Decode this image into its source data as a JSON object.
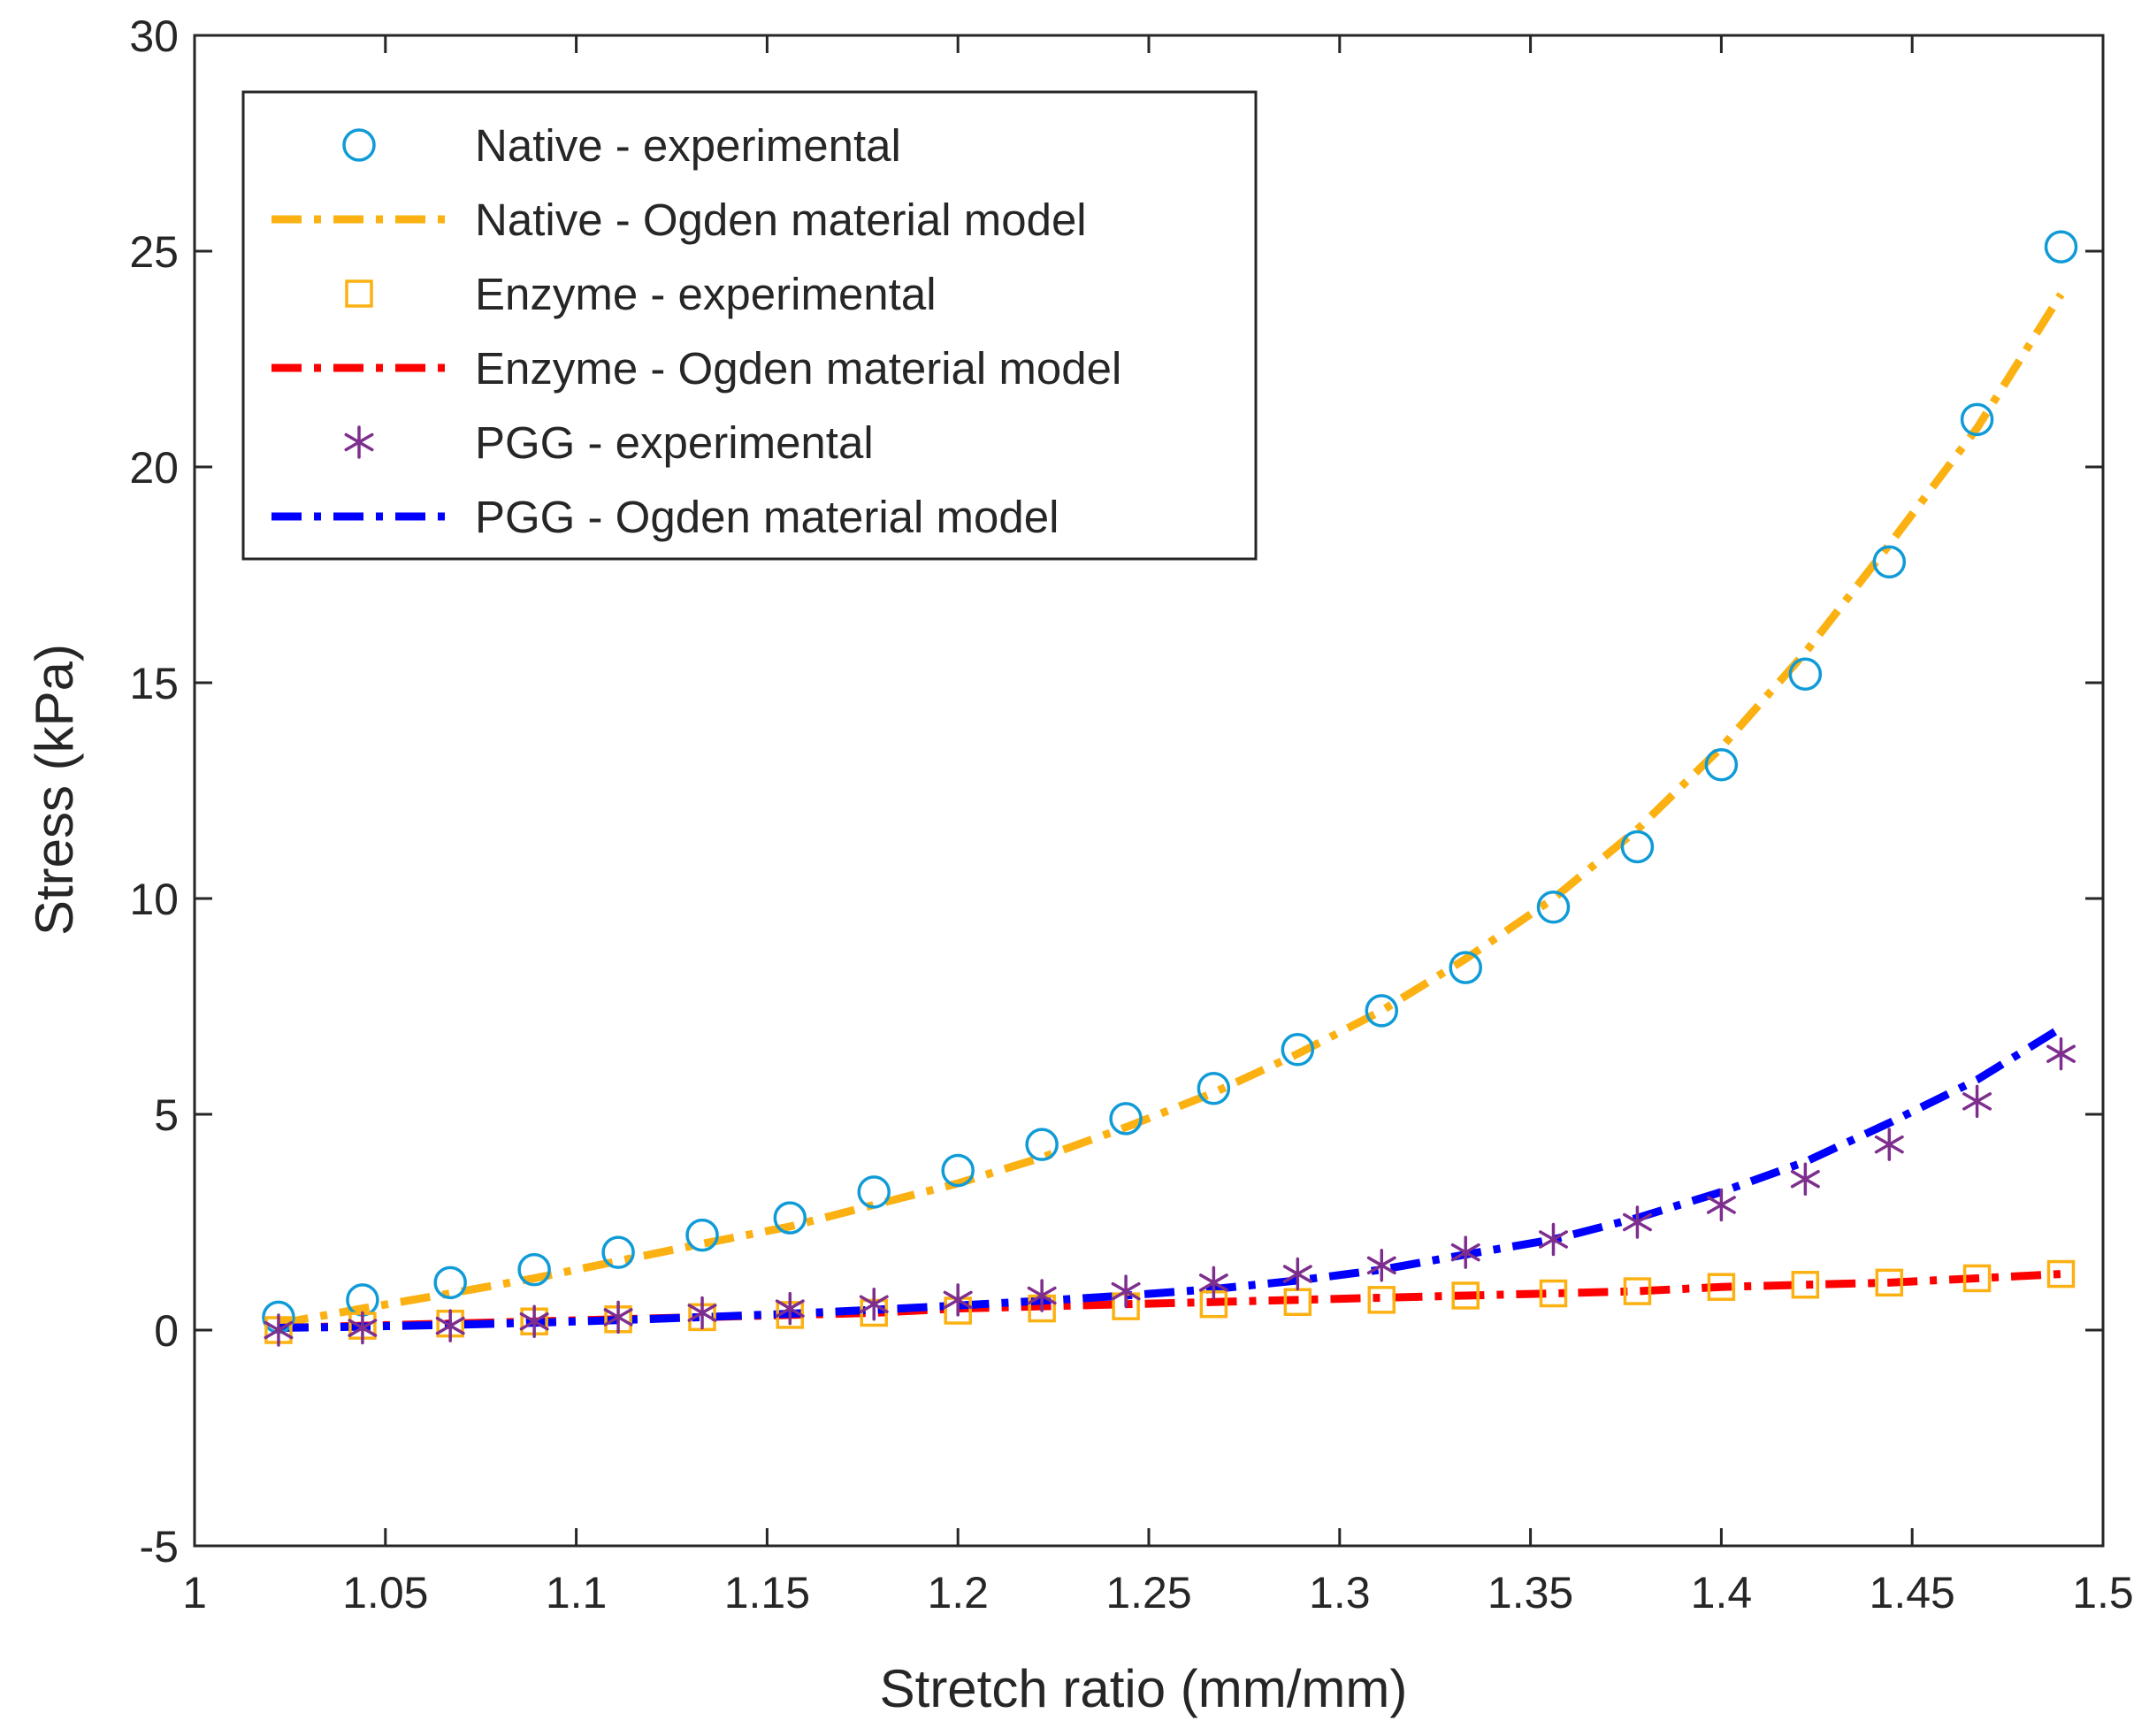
{
  "chart_data": {
    "type": "line",
    "xlabel": "Stretch ratio (mm/mm)",
    "ylabel": "Stress (kPa)",
    "xlim": [
      1,
      1.5
    ],
    "ylim": [
      -5,
      30
    ],
    "x_ticks": [
      1,
      1.05,
      1.1,
      1.15,
      1.2,
      1.25,
      1.3,
      1.35,
      1.4,
      1.45,
      1.5
    ],
    "x_tick_labels": [
      "1",
      "1.05",
      "1.1",
      "1.15",
      "1.2",
      "1.25",
      "1.3",
      "1.35",
      "1.4",
      "1.45",
      "1.5"
    ],
    "y_ticks": [
      -5,
      0,
      5,
      10,
      15,
      20,
      25,
      30
    ],
    "y_tick_labels": [
      "-5",
      "0",
      "5",
      "10",
      "15",
      "20",
      "25",
      "30"
    ],
    "grid": false,
    "legend_position": "top-left",
    "x": [
      1.022,
      1.044,
      1.067,
      1.089,
      1.111,
      1.133,
      1.156,
      1.178,
      1.2,
      1.222,
      1.244,
      1.267,
      1.289,
      1.311,
      1.333,
      1.356,
      1.378,
      1.4,
      1.422,
      1.444,
      1.467,
      1.489
    ],
    "series": [
      {
        "name": "Native - experimental",
        "kind": "marker",
        "marker": "circle",
        "color": "#0f9bd7",
        "values": [
          0.3,
          0.7,
          1.1,
          1.4,
          1.8,
          2.2,
          2.6,
          3.2,
          3.7,
          4.3,
          4.9,
          5.6,
          6.5,
          7.4,
          8.4,
          9.8,
          11.2,
          13.1,
          15.2,
          17.8,
          21.1,
          25.1
        ]
      },
      {
        "name": "Native - Ogden material model",
        "kind": "line",
        "dash": "dashdot",
        "color": "#fbb112",
        "values": [
          0.15,
          0.5,
          0.85,
          1.2,
          1.6,
          2.0,
          2.4,
          2.9,
          3.4,
          4.0,
          4.7,
          5.5,
          6.4,
          7.4,
          8.6,
          10.0,
          11.6,
          13.5,
          15.7,
          18.2,
          20.9,
          24.0
        ]
      },
      {
        "name": "Enzyme - experimental",
        "kind": "marker",
        "marker": "square",
        "color": "#fbb112",
        "values": [
          0.0,
          0.1,
          0.15,
          0.2,
          0.25,
          0.3,
          0.35,
          0.4,
          0.45,
          0.5,
          0.55,
          0.6,
          0.65,
          0.7,
          0.8,
          0.85,
          0.9,
          1.0,
          1.05,
          1.1,
          1.2,
          1.3
        ]
      },
      {
        "name": "Enzyme - Ogden material model",
        "kind": "line",
        "dash": "dashdot",
        "color": "#ff0000",
        "values": [
          0.05,
          0.1,
          0.15,
          0.2,
          0.25,
          0.3,
          0.35,
          0.4,
          0.5,
          0.55,
          0.6,
          0.65,
          0.7,
          0.75,
          0.8,
          0.85,
          0.9,
          1.0,
          1.05,
          1.1,
          1.2,
          1.3
        ]
      },
      {
        "name": "PGG - experimental",
        "kind": "marker",
        "marker": "asterisk",
        "color": "#7e2f8e",
        "values": [
          0.0,
          0.05,
          0.1,
          0.2,
          0.3,
          0.4,
          0.5,
          0.6,
          0.7,
          0.8,
          0.9,
          1.1,
          1.3,
          1.5,
          1.8,
          2.1,
          2.5,
          2.9,
          3.5,
          4.3,
          5.3,
          6.4
        ]
      },
      {
        "name": "PGG - Ogden material model",
        "kind": "line",
        "dash": "dashdot",
        "color": "#0000ff",
        "values": [
          0.05,
          0.08,
          0.12,
          0.17,
          0.23,
          0.3,
          0.38,
          0.47,
          0.57,
          0.68,
          0.8,
          0.95,
          1.15,
          1.4,
          1.75,
          2.1,
          2.6,
          3.2,
          3.9,
          4.8,
          5.8,
          7.0
        ]
      }
    ]
  }
}
